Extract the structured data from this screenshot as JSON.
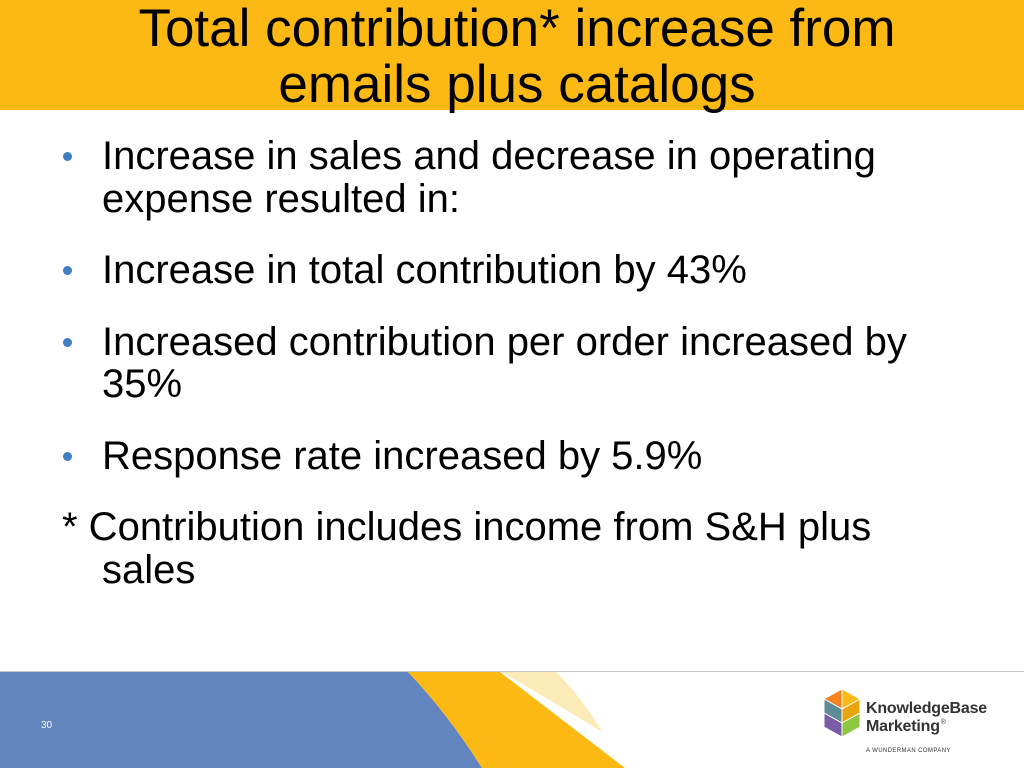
{
  "slide": {
    "title": "Total contribution* increase from emails plus catalogs",
    "bullets": [
      "Increase in sales and decrease in operating expense resulted in:",
      "Increase in total contribution by 43%",
      "Increased contribution per order increased by 35%",
      "Response rate increased by 5.9%"
    ],
    "footnote": "* Contribution includes income from S&H plus sales",
    "page_number": "30"
  },
  "logo": {
    "wordmark_line1": "KnowledgeBase",
    "wordmark_line2": "Marketing",
    "registered_mark": "®",
    "tagline": "A WUNDERMAN COMPANY"
  },
  "colors": {
    "header-bg": "#FDB913",
    "bullet": "#3F7EC3",
    "footer-blue": "#6285C0",
    "footer-yellow": "#FDB913",
    "footer-pale": "#FCEBB6",
    "footer-line": "#C8C8C8",
    "page-number": "#FFFFFF",
    "logo-text": "#333333",
    "logo-orange": "#F58220",
    "logo-yellow": "#FDB913",
    "logo-yellow-dark": "#E9A50E",
    "logo-teal": "#5E8C96",
    "logo-purple": "#7A5BA5",
    "logo-green": "#8DC63F"
  }
}
